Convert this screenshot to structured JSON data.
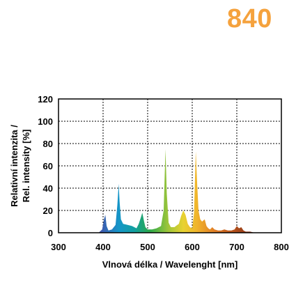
{
  "title_code": "840",
  "colors": {
    "title": "#f5a23d",
    "grid": "#000000",
    "frame": "#000000"
  },
  "chart_data": {
    "type": "area",
    "title": "840",
    "xlabel": "Vlnová délka / Wavelenght [nm]",
    "ylabel_line1": "Relativní intenzita /",
    "ylabel_line2": "Rel. intensity [%]",
    "xlim": [
      300,
      800
    ],
    "ylim": [
      0,
      120
    ],
    "xticks": [
      300,
      400,
      500,
      600,
      700,
      800
    ],
    "yticks": [
      0,
      20,
      40,
      60,
      80,
      100,
      120
    ],
    "grid": true,
    "series": [
      {
        "x": [
          390,
          398,
          402,
          405,
          408,
          412,
          420,
          428,
          432,
          435,
          437,
          440,
          445,
          455,
          465,
          475,
          480,
          485,
          488,
          492,
          495,
          500,
          510,
          520,
          530,
          536,
          540,
          543,
          547,
          552,
          560,
          570,
          575,
          580,
          585,
          590,
          595,
          600,
          604,
          608,
          611,
          614,
          618,
          622,
          628,
          632,
          636,
          640,
          645,
          650,
          658,
          665,
          672,
          680,
          688,
          695,
          700,
          705,
          710,
          715,
          720,
          725,
          730,
          740
        ],
        "y": [
          0,
          3,
          12,
          16,
          6,
          2,
          3,
          7,
          25,
          44,
          28,
          12,
          8,
          7,
          6,
          4,
          8,
          14,
          18,
          10,
          5,
          3,
          3,
          4,
          6,
          20,
          75,
          35,
          9,
          5,
          5,
          8,
          15,
          20,
          16,
          8,
          5,
          4,
          18,
          73,
          45,
          20,
          12,
          10,
          12,
          6,
          4,
          3,
          5,
          3,
          2,
          2,
          3,
          2,
          2,
          3,
          6,
          4,
          5,
          2,
          1,
          1,
          1,
          0
        ]
      }
    ]
  }
}
